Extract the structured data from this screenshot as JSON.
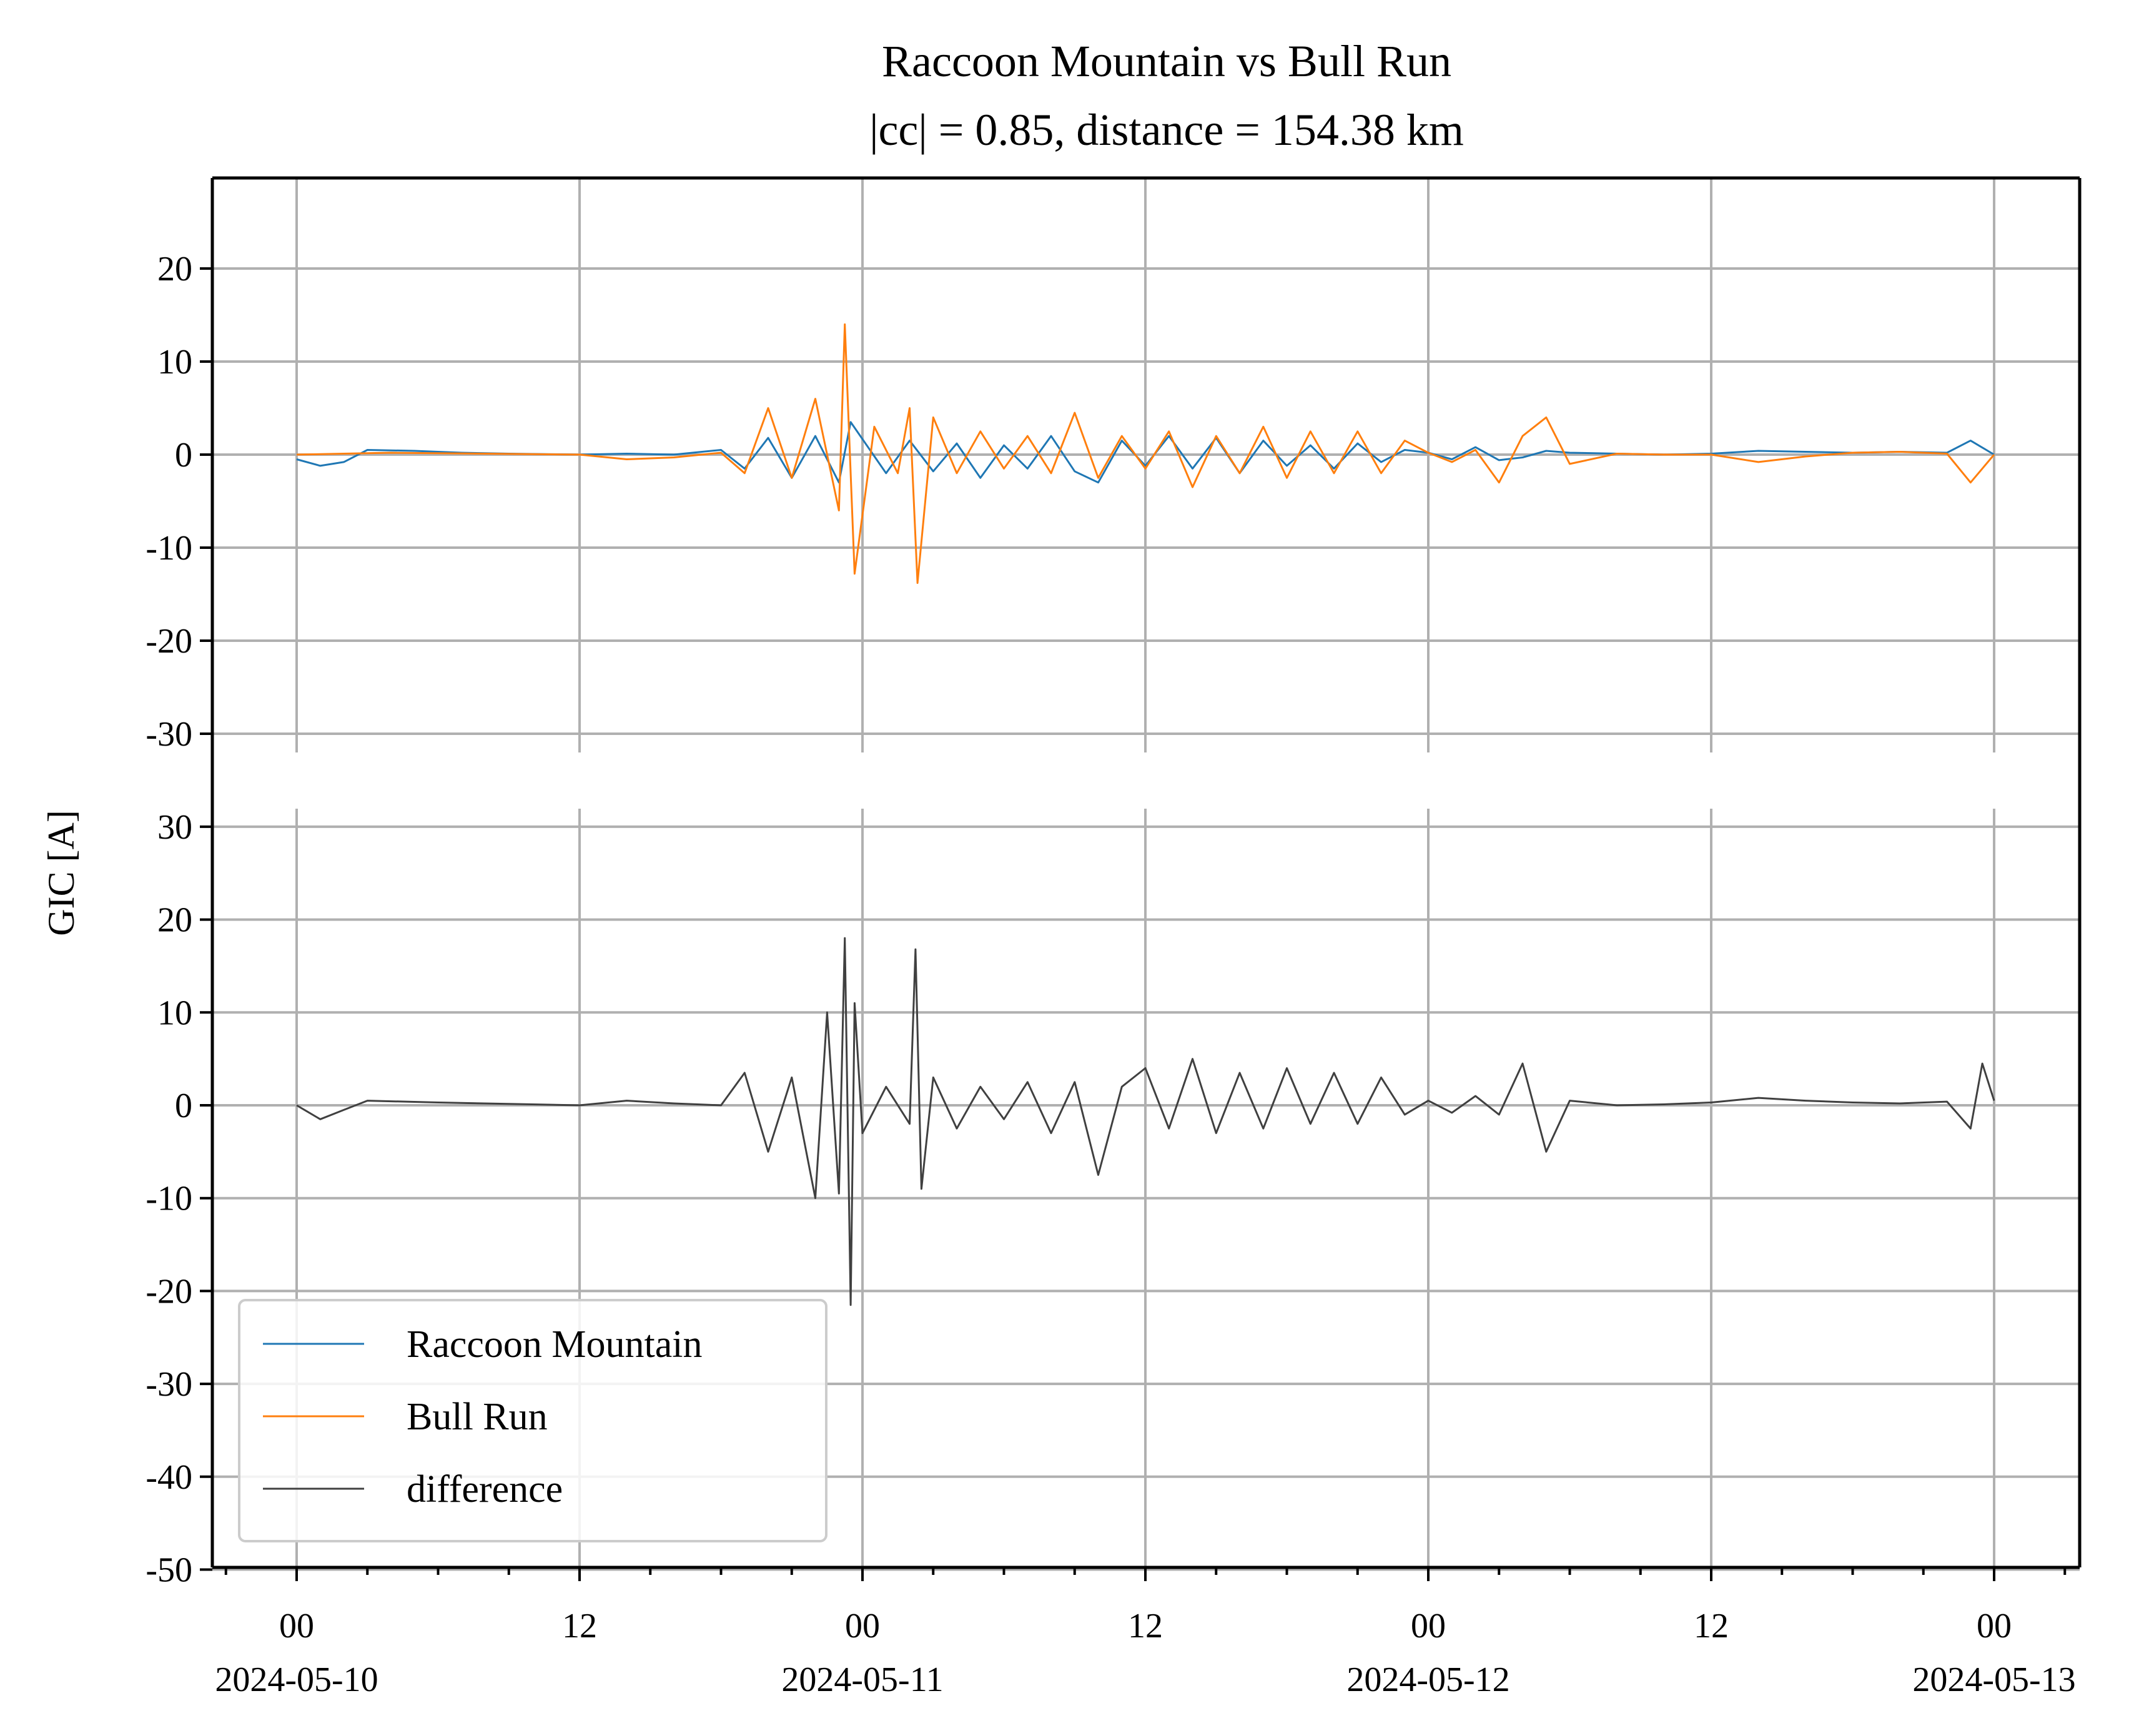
{
  "chart_data": {
    "type": "line",
    "title": "Raccoon Mountain vs Bull Run",
    "subtitle": "|cc| = 0.85, distance = 154.38 km",
    "ylabel": "GIC [A]",
    "xlabel": "",
    "grid": true,
    "legend_position": "lower-left",
    "x_range": [
      "2024-05-10T00:00",
      "2024-05-13T00:00"
    ],
    "x_tick_values": [
      "2024-05-10T00:00",
      "2024-05-10T12:00",
      "2024-05-11T00:00",
      "2024-05-11T12:00",
      "2024-05-12T00:00",
      "2024-05-12T12:00",
      "2024-05-13T00:00"
    ],
    "x_tick_labels": [
      {
        "hour": "00",
        "date": "2024-05-10"
      },
      {
        "hour": "12",
        "date": ""
      },
      {
        "hour": "00",
        "date": "2024-05-11"
      },
      {
        "hour": "12",
        "date": ""
      },
      {
        "hour": "00",
        "date": "2024-05-12"
      },
      {
        "hour": "12",
        "date": ""
      },
      {
        "hour": "00",
        "date": "2024-05-13"
      }
    ],
    "panels": [
      {
        "ylim": [
          -30,
          30
        ],
        "yticks": [
          20,
          10,
          0,
          -10,
          -20,
          -30
        ],
        "ytick_labels": [
          "20",
          "10",
          "0",
          "-10",
          "-20",
          "-30"
        ],
        "series": [
          {
            "name": "Raccoon Mountain",
            "color": "#1f77b4",
            "x": [
              "2024-05-10T00:00",
              "2024-05-10T01:00",
              "2024-05-10T02:00",
              "2024-05-10T03:00",
              "2024-05-10T05:00",
              "2024-05-10T07:00",
              "2024-05-10T09:00",
              "2024-05-10T12:00",
              "2024-05-10T14:00",
              "2024-05-10T16:00",
              "2024-05-10T18:00",
              "2024-05-10T19:00",
              "2024-05-10T20:00",
              "2024-05-10T21:00",
              "2024-05-10T22:00",
              "2024-05-10T23:00",
              "2024-05-10T23:30",
              "2024-05-11T01:00",
              "2024-05-11T02:00",
              "2024-05-11T03:00",
              "2024-05-11T04:00",
              "2024-05-11T05:00",
              "2024-05-11T06:00",
              "2024-05-11T07:00",
              "2024-05-11T08:00",
              "2024-05-11T09:00",
              "2024-05-11T10:00",
              "2024-05-11T11:00",
              "2024-05-11T12:00",
              "2024-05-11T13:00",
              "2024-05-11T14:00",
              "2024-05-11T15:00",
              "2024-05-11T16:00",
              "2024-05-11T17:00",
              "2024-05-11T18:00",
              "2024-05-11T19:00",
              "2024-05-11T20:00",
              "2024-05-11T21:00",
              "2024-05-11T22:00",
              "2024-05-11T23:00",
              "2024-05-12T00:00",
              "2024-05-12T01:00",
              "2024-05-12T02:00",
              "2024-05-12T03:00",
              "2024-05-12T04:00",
              "2024-05-12T05:00",
              "2024-05-12T06:00",
              "2024-05-12T08:00",
              "2024-05-12T10:00",
              "2024-05-12T12:00",
              "2024-05-12T14:00",
              "2024-05-12T16:00",
              "2024-05-12T18:00",
              "2024-05-12T20:00",
              "2024-05-12T22:00",
              "2024-05-12T23:00",
              "2024-05-13T00:00"
            ],
            "values": [
              -0.5,
              -1.2,
              -0.8,
              0.5,
              0.4,
              0.2,
              0.1,
              0.0,
              0.1,
              0.0,
              0.5,
              -1.5,
              1.8,
              -2.5,
              2.0,
              -3.0,
              3.5,
              -2.0,
              1.5,
              -1.8,
              1.2,
              -2.5,
              1.0,
              -1.5,
              2.0,
              -1.8,
              -3.0,
              1.5,
              -1.2,
              2.0,
              -1.5,
              1.8,
              -2.0,
              1.5,
              -1.2,
              1.0,
              -1.5,
              1.2,
              -0.8,
              0.5,
              0.2,
              -0.5,
              0.8,
              -0.6,
              -0.3,
              0.4,
              0.2,
              0.1,
              0.0,
              0.1,
              0.4,
              0.3,
              0.2,
              0.3,
              0.2,
              1.5,
              0.0
            ]
          },
          {
            "name": "Bull Run",
            "color": "#ff7f0e",
            "x": [
              "2024-05-10T00:00",
              "2024-05-10T02:00",
              "2024-05-10T04:00",
              "2024-05-10T08:00",
              "2024-05-10T12:00",
              "2024-05-10T14:00",
              "2024-05-10T16:00",
              "2024-05-10T18:00",
              "2024-05-10T19:00",
              "2024-05-10T20:00",
              "2024-05-10T21:00",
              "2024-05-10T22:00",
              "2024-05-10T23:00",
              "2024-05-10T23:15",
              "2024-05-10T23:40",
              "2024-05-11T00:30",
              "2024-05-11T01:30",
              "2024-05-11T02:00",
              "2024-05-11T02:20",
              "2024-05-11T03:00",
              "2024-05-11T04:00",
              "2024-05-11T05:00",
              "2024-05-11T06:00",
              "2024-05-11T07:00",
              "2024-05-11T08:00",
              "2024-05-11T09:00",
              "2024-05-11T10:00",
              "2024-05-11T11:00",
              "2024-05-11T12:00",
              "2024-05-11T13:00",
              "2024-05-11T14:00",
              "2024-05-11T15:00",
              "2024-05-11T16:00",
              "2024-05-11T17:00",
              "2024-05-11T18:00",
              "2024-05-11T19:00",
              "2024-05-11T20:00",
              "2024-05-11T21:00",
              "2024-05-11T22:00",
              "2024-05-11T23:00",
              "2024-05-12T00:00",
              "2024-05-12T01:00",
              "2024-05-12T02:00",
              "2024-05-12T03:00",
              "2024-05-12T04:00",
              "2024-05-12T05:00",
              "2024-05-12T06:00",
              "2024-05-12T08:00",
              "2024-05-12T10:00",
              "2024-05-12T12:00",
              "2024-05-12T14:00",
              "2024-05-12T16:00",
              "2024-05-12T18:00",
              "2024-05-12T20:00",
              "2024-05-12T22:00",
              "2024-05-12T23:00",
              "2024-05-13T00:00"
            ],
            "values": [
              0.0,
              0.1,
              0.2,
              0.1,
              0.0,
              -0.5,
              -0.3,
              0.2,
              -2.0,
              5.0,
              -2.5,
              6.0,
              -6.0,
              14.0,
              -12.8,
              3.0,
              -2.0,
              5.0,
              -13.8,
              4.0,
              -2.0,
              2.5,
              -1.5,
              2.0,
              -2.0,
              4.5,
              -2.5,
              2.0,
              -1.5,
              2.5,
              -3.5,
              2.0,
              -2.0,
              3.0,
              -2.5,
              2.5,
              -2.0,
              2.5,
              -2.0,
              1.5,
              0.2,
              -0.8,
              0.5,
              -3.0,
              2.0,
              4.0,
              -1.0,
              0.1,
              0.0,
              0.0,
              -0.8,
              -0.2,
              0.2,
              0.3,
              0.1,
              -3.0,
              0.0
            ]
          }
        ]
      },
      {
        "ylim": [
          -50,
          32
        ],
        "yticks": [
          30,
          20,
          10,
          0,
          -10,
          -20,
          -30,
          -40,
          -50
        ],
        "ytick_labels": [
          "30",
          "20",
          "10",
          "0",
          "-10",
          "-20",
          "-30",
          "-40",
          "-50"
        ],
        "series": [
          {
            "name": "difference",
            "color": "#404040",
            "x": [
              "2024-05-10T00:00",
              "2024-05-10T01:00",
              "2024-05-10T02:00",
              "2024-05-10T03:00",
              "2024-05-10T06:00",
              "2024-05-10T10:00",
              "2024-05-10T12:00",
              "2024-05-10T14:00",
              "2024-05-10T16:00",
              "2024-05-10T18:00",
              "2024-05-10T19:00",
              "2024-05-10T20:00",
              "2024-05-10T21:00",
              "2024-05-10T22:00",
              "2024-05-10T22:30",
              "2024-05-10T23:00",
              "2024-05-10T23:15",
              "2024-05-10T23:30",
              "2024-05-10T23:40",
              "2024-05-11T00:00",
              "2024-05-11T01:00",
              "2024-05-11T02:00",
              "2024-05-11T02:15",
              "2024-05-11T02:30",
              "2024-05-11T03:00",
              "2024-05-11T04:00",
              "2024-05-11T05:00",
              "2024-05-11T06:00",
              "2024-05-11T07:00",
              "2024-05-11T08:00",
              "2024-05-11T09:00",
              "2024-05-11T10:00",
              "2024-05-11T11:00",
              "2024-05-11T12:00",
              "2024-05-11T13:00",
              "2024-05-11T14:00",
              "2024-05-11T15:00",
              "2024-05-11T16:00",
              "2024-05-11T17:00",
              "2024-05-11T18:00",
              "2024-05-11T19:00",
              "2024-05-11T20:00",
              "2024-05-11T21:00",
              "2024-05-11T22:00",
              "2024-05-11T23:00",
              "2024-05-12T00:00",
              "2024-05-12T01:00",
              "2024-05-12T02:00",
              "2024-05-12T03:00",
              "2024-05-12T04:00",
              "2024-05-12T05:00",
              "2024-05-12T06:00",
              "2024-05-12T08:00",
              "2024-05-12T10:00",
              "2024-05-12T12:00",
              "2024-05-12T14:00",
              "2024-05-12T16:00",
              "2024-05-12T18:00",
              "2024-05-12T20:00",
              "2024-05-12T22:00",
              "2024-05-12T23:00",
              "2024-05-12T23:30",
              "2024-05-13T00:00"
            ],
            "values": [
              0.0,
              -1.5,
              -0.5,
              0.5,
              0.3,
              0.1,
              0.0,
              0.5,
              0.2,
              0.0,
              3.5,
              -5.0,
              3.0,
              -10.0,
              10.0,
              -9.5,
              18.0,
              -21.5,
              11.0,
              -3.0,
              2.0,
              -2.0,
              16.8,
              -9.0,
              3.0,
              -2.5,
              2.0,
              -1.5,
              2.5,
              -3.0,
              2.5,
              -7.5,
              2.0,
              4.0,
              -2.5,
              5.0,
              -3.0,
              3.5,
              -2.5,
              4.0,
              -2.0,
              3.5,
              -2.0,
              3.0,
              -1.0,
              0.5,
              -0.8,
              1.0,
              -1.0,
              4.5,
              -5.0,
              0.5,
              0.0,
              0.1,
              0.3,
              0.8,
              0.5,
              0.3,
              0.2,
              0.4,
              -2.5,
              4.5,
              0.5
            ]
          }
        ]
      }
    ]
  }
}
